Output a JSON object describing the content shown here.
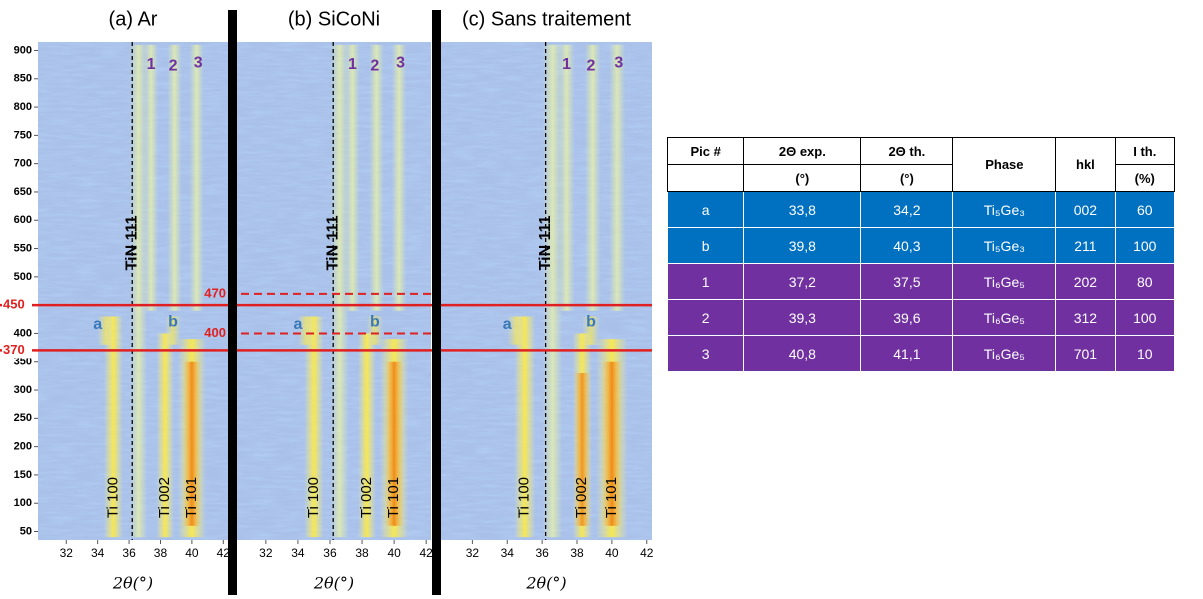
{
  "y_axis": {
    "lim": [
      35,
      915
    ],
    "ticks": [
      50,
      100,
      150,
      200,
      250,
      300,
      350,
      400,
      450,
      500,
      550,
      600,
      650,
      700,
      750,
      800,
      850,
      900
    ]
  },
  "x_axis": {
    "lim": [
      30.2,
      42.3
    ],
    "ticks": [
      32,
      34,
      36,
      38,
      40,
      42
    ],
    "label": "2θ(°)"
  },
  "panels": [
    {
      "title": "(a) Ar",
      "reflections": [
        "TiN 111",
        "Ti 100",
        "Ti 002",
        "Ti 101"
      ],
      "peaks": [
        "a",
        "b",
        "1",
        "2",
        "3"
      ]
    },
    {
      "title": "(b) SiCoNi",
      "reflections": [
        "TiN 111",
        "Ti 100",
        "Ti 002",
        "Ti 101"
      ],
      "peaks": [
        "a",
        "b",
        "1",
        "2",
        "3"
      ]
    },
    {
      "title": "(c) Sans traitement",
      "reflections": [
        "TiN 111",
        "Ti 100",
        "Ti 002",
        "Ti 101"
      ],
      "peaks": [
        "a",
        "b",
        "1",
        "2",
        "3"
      ]
    }
  ],
  "temperature_lines": [
    {
      "value": 450,
      "label": "450"
    },
    {
      "value": 370,
      "label": "370"
    }
  ],
  "siconi_lines": [
    {
      "value": 470,
      "label": "470"
    },
    {
      "value": 400,
      "label": "400"
    }
  ],
  "table": {
    "header": [
      "Pic #",
      "2Θ exp.",
      "2Θ th.",
      "Phase",
      "hkl",
      "I th."
    ],
    "units": {
      "exp": "(°)",
      "th": "(°)",
      "i_th": "(%)"
    },
    "rows": [
      {
        "color": "#0070c0",
        "cells": [
          "a",
          "33,8",
          "34,2",
          "Ti₅Ge₃",
          "002",
          "60"
        ]
      },
      {
        "color": "#0070c0",
        "cells": [
          "b",
          "39,8",
          "40,3",
          "Ti₅Ge₃",
          "211",
          "100"
        ]
      },
      {
        "color": "#7030a0",
        "cells": [
          "1",
          "37,2",
          "37,5",
          "Ti₆Ge₅",
          "202",
          "80"
        ]
      },
      {
        "color": "#7030a0",
        "cells": [
          "2",
          "39,3",
          "39,6",
          "Ti₆Ge₅",
          "312",
          "100"
        ]
      },
      {
        "color": "#7030a0",
        "cells": [
          "3",
          "40,8",
          "41,1",
          "Ti₆Ge₅",
          "701",
          "10"
        ]
      }
    ]
  }
}
